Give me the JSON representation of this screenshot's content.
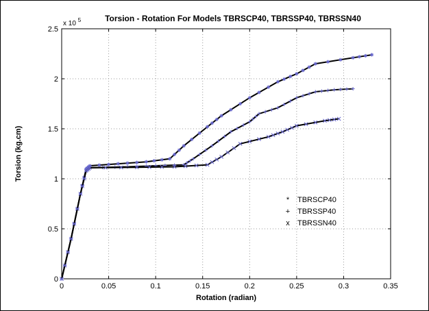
{
  "chart_data": {
    "type": "line",
    "title": "Torsion - Rotation For Models TBRSCP40, TBRSSP40, TBRSSN40",
    "xlabel": "Rotation (radian)",
    "ylabel": "Torsion (kg.cm)",
    "xlim": [
      0,
      0.35
    ],
    "ylim": [
      0,
      250000
    ],
    "y_multiplier_label": "x 10",
    "y_multiplier_exponent": "5",
    "grid": true,
    "legend_position": "right, center-low",
    "x_ticks": [
      {
        "value": 0,
        "label": "0"
      },
      {
        "value": 0.05,
        "label": "0.05"
      },
      {
        "value": 0.1,
        "label": "0.1"
      },
      {
        "value": 0.15,
        "label": "0.15"
      },
      {
        "value": 0.2,
        "label": "0.2"
      },
      {
        "value": 0.25,
        "label": "0.25"
      },
      {
        "value": 0.3,
        "label": "0.3"
      },
      {
        "value": 0.35,
        "label": "0.35"
      }
    ],
    "y_ticks": [
      {
        "value": 0,
        "label": "0"
      },
      {
        "value": 50000,
        "label": "0.5"
      },
      {
        "value": 100000,
        "label": "1"
      },
      {
        "value": 150000,
        "label": "1.5"
      },
      {
        "value": 200000,
        "label": "2"
      },
      {
        "value": 250000,
        "label": "2.5"
      }
    ],
    "series": [
      {
        "name": "TBRSCP40",
        "marker": "*",
        "color": "#000000",
        "marker_color": "#6666cc",
        "x": [
          0,
          0.01,
          0.02,
          0.026,
          0.03,
          0.06,
          0.09,
          0.115,
          0.13,
          0.155,
          0.17,
          0.2,
          0.23,
          0.25,
          0.27,
          0.31,
          0.33
        ],
        "y": [
          0,
          40000,
          85000,
          110000,
          113000,
          115000,
          117000,
          120000,
          133000,
          152000,
          163000,
          181000,
          197000,
          205000,
          215000,
          221000,
          224000
        ]
      },
      {
        "name": "TBRSSP40",
        "marker": "+",
        "color": "#000000",
        "marker_color": "#6666cc",
        "x": [
          0,
          0.01,
          0.02,
          0.026,
          0.03,
          0.07,
          0.1,
          0.13,
          0.14,
          0.16,
          0.18,
          0.2,
          0.21,
          0.23,
          0.25,
          0.27,
          0.29,
          0.31
        ],
        "y": [
          0,
          40000,
          85000,
          108000,
          111000,
          112000,
          113000,
          114000,
          120000,
          133000,
          147000,
          157000,
          165000,
          171000,
          181000,
          187000,
          189000,
          190000
        ]
      },
      {
        "name": "TBRSSN40",
        "marker": "x",
        "color": "#000000",
        "marker_color": "#6666cc",
        "x": [
          0,
          0.01,
          0.02,
          0.026,
          0.03,
          0.08,
          0.12,
          0.155,
          0.17,
          0.19,
          0.22,
          0.235,
          0.25,
          0.28,
          0.295
        ],
        "y": [
          0,
          40000,
          85000,
          108000,
          111000,
          111500,
          112000,
          114000,
          122000,
          135000,
          142000,
          147000,
          153000,
          158000,
          160000
        ]
      }
    ]
  }
}
